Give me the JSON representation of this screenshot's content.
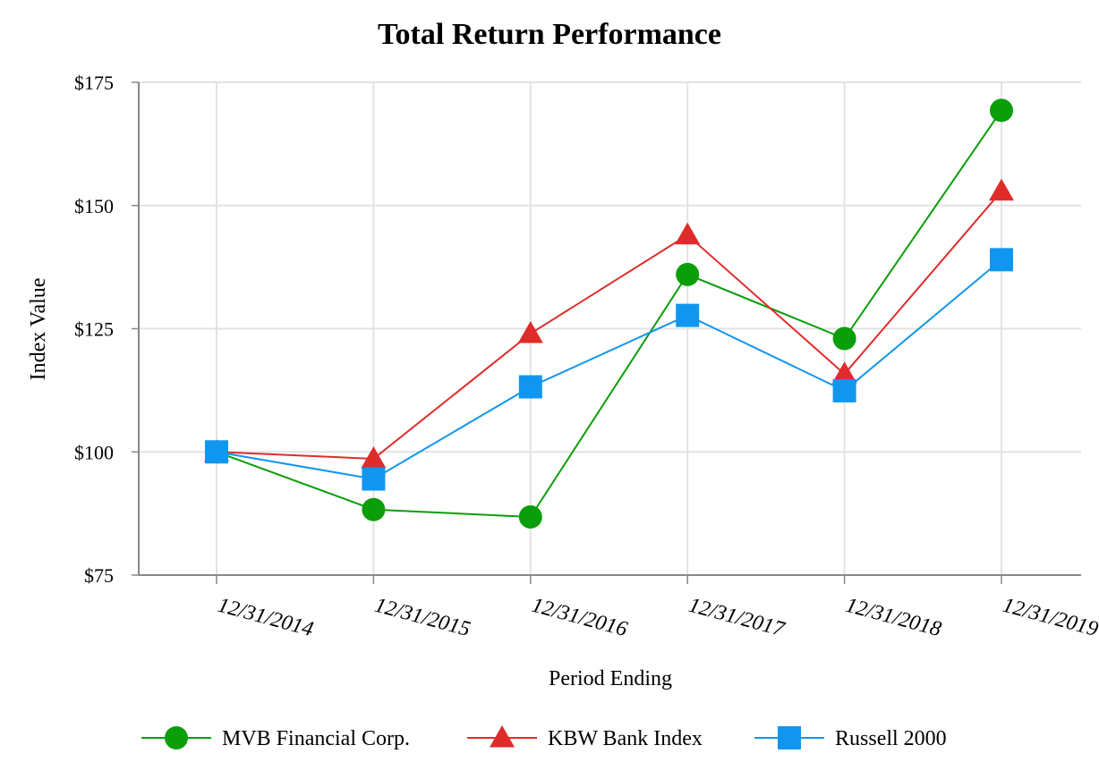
{
  "chart_data": {
    "type": "line",
    "title": "Total Return Performance",
    "xlabel": "Period Ending",
    "ylabel": "Index Value",
    "ylim": [
      75,
      175
    ],
    "yticks": [
      {
        "value": 75,
        "label": "$75"
      },
      {
        "value": 100,
        "label": "$100"
      },
      {
        "value": 125,
        "label": "$125"
      },
      {
        "value": 150,
        "label": "$150"
      },
      {
        "value": 175,
        "label": "$175"
      }
    ],
    "categories": [
      "12/31/2014",
      "12/31/2015",
      "12/31/2016",
      "12/31/2017",
      "12/31/2018",
      "12/31/2019"
    ],
    "grid": true,
    "legend_position": "bottom",
    "series": [
      {
        "name": "MVB Financial Corp.",
        "color": "#0a9e0a",
        "marker": "circle",
        "values": [
          100.0,
          88.3,
          86.8,
          136.0,
          123.0,
          169.3
        ]
      },
      {
        "name": "KBW Bank Index",
        "color": "#e02b2b",
        "marker": "triangle",
        "values": [
          100.0,
          98.6,
          124.0,
          144.0,
          115.8,
          152.9
        ]
      },
      {
        "name": "Russell 2000",
        "color": "#1196f0",
        "marker": "square",
        "values": [
          100.0,
          94.5,
          113.2,
          127.7,
          112.4,
          139.0
        ]
      }
    ]
  }
}
